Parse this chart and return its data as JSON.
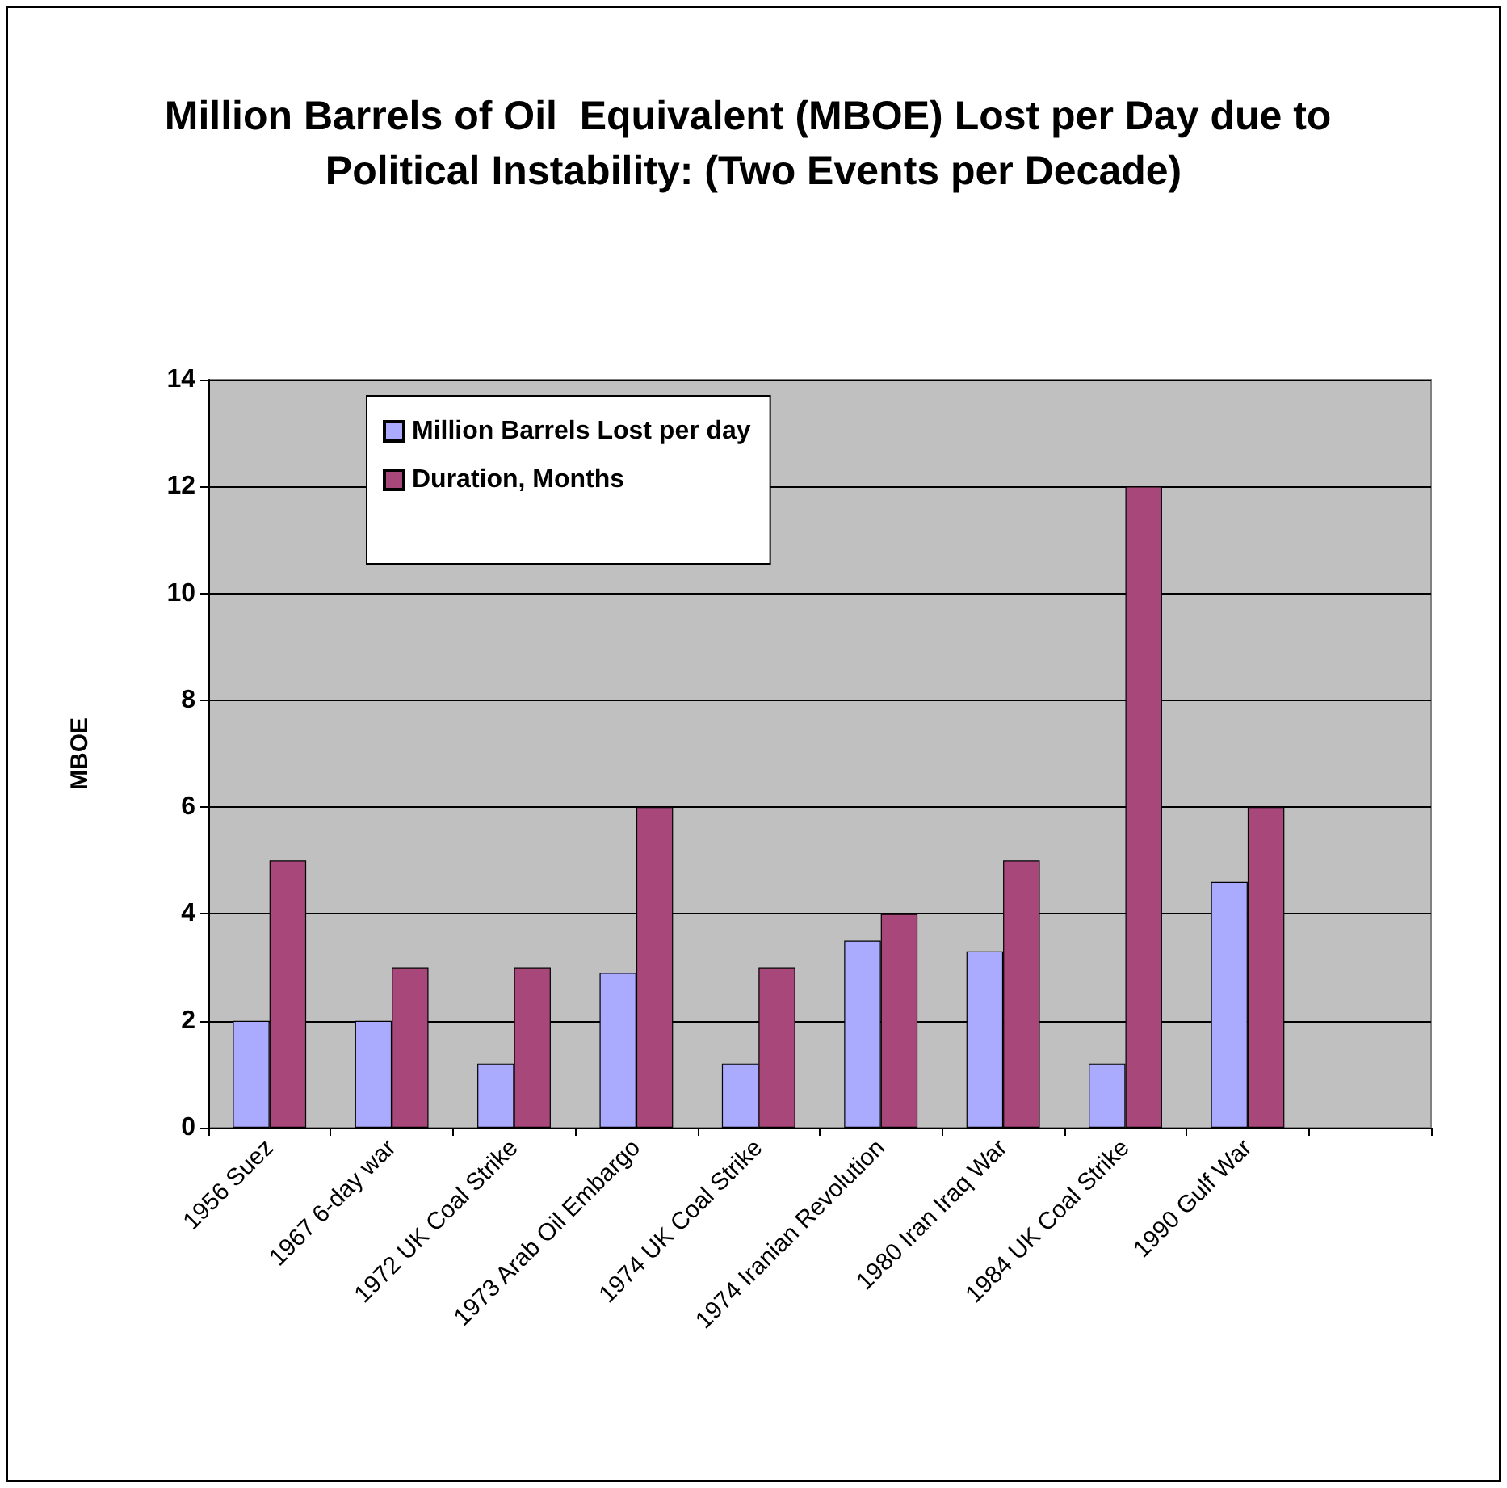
{
  "chart_data": {
    "type": "bar",
    "title": "Million Barrels of Oil  Equivalent (MBOE) Lost per Day due to Political Instability: (Two Events per Decade)",
    "ylabel": "MBOE",
    "categories": [
      "1956 Suez",
      "1967 6-day war",
      "1972 UK Coal Strike",
      "1973 Arab Oil Embargo",
      "1974 UK Coal Strike",
      "1974 Iranian Revolution",
      "1980 Iran Iraq War",
      "1984 UK Coal Strike",
      "1990 Gulf War",
      null
    ],
    "series": [
      {
        "name": "Million Barrels Lost per day",
        "color": "#aaaaff",
        "values": [
          2,
          2,
          1.2,
          2.9,
          1.2,
          3.5,
          3.3,
          1.2,
          4.6,
          null
        ]
      },
      {
        "name": "Duration, Months",
        "color": "#a8477a",
        "values": [
          5,
          3,
          3,
          6,
          3,
          4,
          5,
          12,
          6,
          null
        ]
      }
    ],
    "ylim": [
      0,
      14
    ],
    "yticks": [
      0,
      2,
      4,
      6,
      8,
      10,
      12,
      14
    ],
    "grid": "y",
    "legend": "top left"
  }
}
